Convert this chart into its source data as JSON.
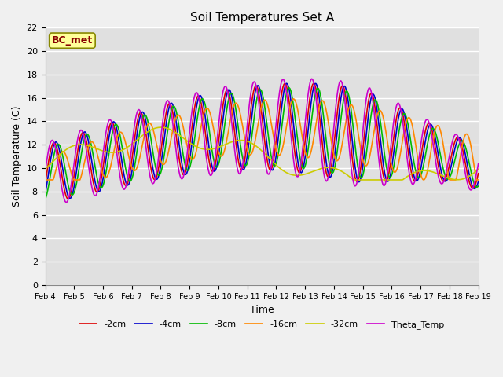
{
  "title": "Soil Temperatures Set A",
  "xlabel": "Time",
  "ylabel": "Soil Temperature (C)",
  "ylim": [
    0,
    22
  ],
  "yticks": [
    0,
    2,
    4,
    6,
    8,
    10,
    12,
    14,
    16,
    18,
    20,
    22
  ],
  "xtick_labels": [
    "Feb 4",
    "Feb 5",
    "Feb 6",
    "Feb 7",
    "Feb 8",
    "Feb 9",
    "Feb 10",
    "Feb 11",
    "Feb 12",
    "Feb 13",
    "Feb 14",
    "Feb 15",
    "Feb 16",
    "Feb 17",
    "Feb 18",
    "Feb 19"
  ],
  "legend_labels": [
    "-2cm",
    "-4cm",
    "-8cm",
    "-16cm",
    "-32cm",
    "Theta_Temp"
  ],
  "colors": {
    "-2cm": "#dd0000",
    "-4cm": "#0000cc",
    "-8cm": "#00bb00",
    "-16cm": "#ff8800",
    "-32cm": "#cccc00",
    "Theta_Temp": "#cc00cc"
  },
  "annotation_text": "BC_met",
  "annotation_bg": "#ffff99",
  "annotation_border": "#888800",
  "annotation_text_color": "#880000",
  "plot_bg_color": "#e0e0e0",
  "fig_bg_color": "#f0f0f0",
  "grid_color": "#ffffff",
  "linewidth": 1.2
}
